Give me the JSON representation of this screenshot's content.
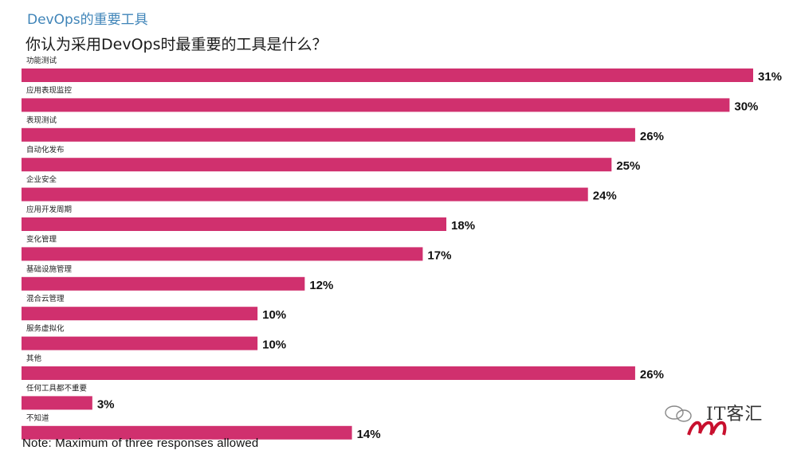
{
  "header": {
    "title": "DevOps的重要工具",
    "subtitle": "你认为采用DevOps时最重要的工具是什么？"
  },
  "footer": {
    "note": "Note: Maximum of three responses allowed",
    "watermark_text": "IT客汇"
  },
  "colors": {
    "bar": "#d0306e",
    "title": "#3f84b8"
  },
  "chart_data": {
    "type": "bar",
    "orientation": "horizontal",
    "categories": [
      "功能测试",
      "应用表现监控",
      "表现测试",
      "自动化发布",
      "企业安全",
      "应用开发周期",
      "变化管理",
      "基础设施管理",
      "混合云管理",
      "服务虚拟化",
      "其他",
      "任何工具都不重要",
      "不知道"
    ],
    "values": [
      31,
      30,
      26,
      25,
      24,
      18,
      17,
      12,
      10,
      10,
      26,
      3,
      14
    ],
    "value_labels": [
      "31%",
      "30%",
      "26%",
      "25%",
      "24%",
      "18%",
      "17%",
      "12%",
      "10%",
      "10%",
      "26%",
      "3%",
      "14%"
    ],
    "unit": "%",
    "xlim": [
      0,
      31
    ],
    "grid": false,
    "legend": "none"
  }
}
